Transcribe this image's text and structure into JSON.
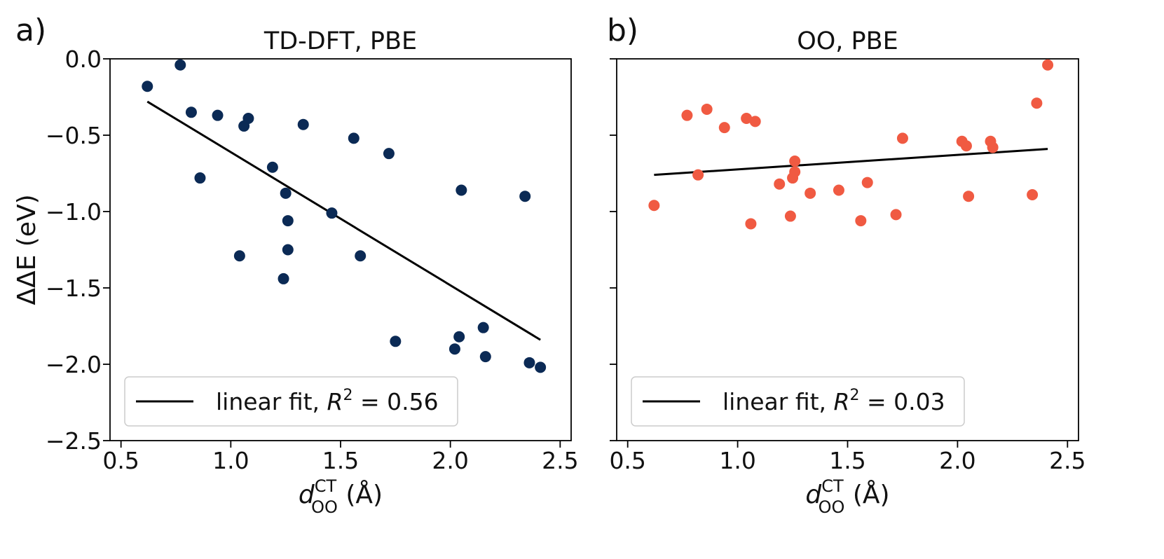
{
  "chart_data": [
    {
      "type": "scatter",
      "panel_label": "a)",
      "title": "TD-DFT, PBE",
      "xlabel": {
        "main": "d",
        "superscript": "CT",
        "subscript": "OO",
        "unit": "(Å)"
      },
      "ylabel": "ΔΔE (eV)",
      "xlim": [
        0.45,
        2.55
      ],
      "ylim": [
        -2.5,
        0.0
      ],
      "xticks": [
        "0.5",
        "1.0",
        "1.5",
        "2.0",
        "2.5"
      ],
      "yticks": [
        "0.0",
        "−0.5",
        "−1.0",
        "−1.5",
        "−2.0",
        "−2.5"
      ],
      "grid": false,
      "point_color": "#0b2a55",
      "points": [
        [
          0.62,
          -0.18
        ],
        [
          0.77,
          -0.04
        ],
        [
          0.82,
          -0.35
        ],
        [
          0.86,
          -0.78
        ],
        [
          0.94,
          -0.37
        ],
        [
          1.04,
          -1.29
        ],
        [
          1.06,
          -0.44
        ],
        [
          1.08,
          -0.39
        ],
        [
          1.19,
          -0.71
        ],
        [
          1.24,
          -1.44
        ],
        [
          1.25,
          -0.88
        ],
        [
          1.26,
          -1.06
        ],
        [
          1.26,
          -1.25
        ],
        [
          1.33,
          -0.43
        ],
        [
          1.46,
          -1.01
        ],
        [
          1.56,
          -0.52
        ],
        [
          1.59,
          -1.29
        ],
        [
          1.72,
          -0.62
        ],
        [
          1.75,
          -1.85
        ],
        [
          2.02,
          -1.9
        ],
        [
          2.04,
          -1.82
        ],
        [
          2.05,
          -0.86
        ],
        [
          2.15,
          -1.76
        ],
        [
          2.16,
          -1.95
        ],
        [
          2.34,
          -0.9
        ],
        [
          2.36,
          -1.99
        ],
        [
          2.41,
          -2.02
        ]
      ],
      "fit": {
        "x": [
          0.62,
          2.41
        ],
        "y": [
          -0.28,
          -1.84
        ],
        "color": "#000000"
      },
      "legend": {
        "label": "linear fit, R² = 0.56",
        "text_main": "linear fit, ",
        "r": "R",
        "sup": "2",
        "value": " = 0.56",
        "position": "lower-left"
      }
    },
    {
      "type": "scatter",
      "panel_label": "b)",
      "title": "OO, PBE",
      "xlabel": {
        "main": "d",
        "superscript": "CT",
        "subscript": "OO",
        "unit": "(Å)"
      },
      "xlim": [
        0.45,
        2.55
      ],
      "ylim": [
        -2.5,
        0.0
      ],
      "xticks": [
        "0.5",
        "1.0",
        "1.5",
        "2.0",
        "2.5"
      ],
      "grid": false,
      "point_color": "#f05a42",
      "points": [
        [
          0.62,
          -0.96
        ],
        [
          0.77,
          -0.37
        ],
        [
          0.82,
          -0.76
        ],
        [
          0.86,
          -0.33
        ],
        [
          0.94,
          -0.45
        ],
        [
          1.04,
          -0.39
        ],
        [
          1.06,
          -1.08
        ],
        [
          1.08,
          -0.41
        ],
        [
          1.19,
          -0.82
        ],
        [
          1.24,
          -1.03
        ],
        [
          1.25,
          -0.78
        ],
        [
          1.26,
          -0.74
        ],
        [
          1.26,
          -0.67
        ],
        [
          1.33,
          -0.88
        ],
        [
          1.46,
          -0.86
        ],
        [
          1.56,
          -1.06
        ],
        [
          1.59,
          -0.81
        ],
        [
          1.72,
          -1.02
        ],
        [
          1.75,
          -0.52
        ],
        [
          2.02,
          -0.54
        ],
        [
          2.04,
          -0.57
        ],
        [
          2.05,
          -0.9
        ],
        [
          2.15,
          -0.54
        ],
        [
          2.16,
          -0.58
        ],
        [
          2.34,
          -0.89
        ],
        [
          2.36,
          -0.29
        ],
        [
          2.41,
          -0.04
        ]
      ],
      "fit": {
        "x": [
          0.62,
          2.41
        ],
        "y": [
          -0.76,
          -0.59
        ],
        "color": "#000000"
      },
      "legend": {
        "label": "linear fit, R² = 0.03",
        "text_main": "linear fit, ",
        "r": "R",
        "sup": "2",
        "value": " = 0.03",
        "position": "lower-left"
      }
    }
  ]
}
